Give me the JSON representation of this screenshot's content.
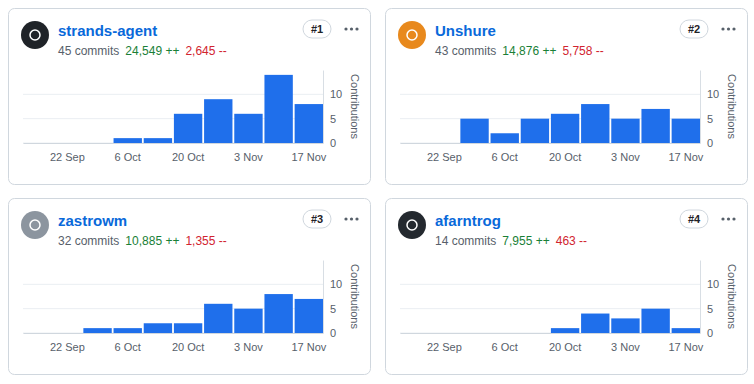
{
  "chart_data": [
    {
      "type": "bar",
      "title": "strands-agent",
      "subtitle": "45 commits",
      "annotations": [
        "24,549 ++",
        "2,645 --"
      ],
      "rank": "#1",
      "ylabel": "Contributions",
      "categories": [
        null,
        "22 Sep",
        null,
        "6 Oct",
        null,
        "20 Oct",
        null,
        "3 Nov",
        null,
        "17 Nov"
      ],
      "values": [
        0,
        0,
        0,
        1,
        1,
        6,
        9,
        6,
        14,
        8
      ],
      "color": "#1f6feb",
      "ylim": [
        0,
        15
      ],
      "yticks": [
        0,
        5,
        10
      ],
      "grid": true
    },
    {
      "type": "bar",
      "title": "Unshure",
      "subtitle": "43 commits",
      "annotations": [
        "14,876 ++",
        "5,758 --"
      ],
      "rank": "#2",
      "ylabel": "Contributions",
      "categories": [
        null,
        "22 Sep",
        null,
        "6 Oct",
        null,
        "20 Oct",
        null,
        "3 Nov",
        null,
        "17 Nov"
      ],
      "values": [
        0,
        0,
        5,
        2,
        5,
        6,
        8,
        5,
        7,
        5
      ],
      "color": "#1f6feb",
      "ylim": [
        0,
        15
      ],
      "yticks": [
        0,
        5,
        10
      ],
      "grid": true
    },
    {
      "type": "bar",
      "title": "zastrowm",
      "subtitle": "32 commits",
      "annotations": [
        "10,885 ++",
        "1,355 --"
      ],
      "rank": "#3",
      "ylabel": "Contributions",
      "categories": [
        null,
        "22 Sep",
        null,
        "6 Oct",
        null,
        "20 Oct",
        null,
        "3 Nov",
        null,
        "17 Nov"
      ],
      "values": [
        0,
        0,
        1,
        1,
        2,
        2,
        6,
        5,
        8,
        7
      ],
      "color": "#1f6feb",
      "ylim": [
        0,
        15
      ],
      "yticks": [
        0,
        5,
        10
      ],
      "grid": true
    },
    {
      "type": "bar",
      "title": "afarntrog",
      "subtitle": "14 commits",
      "annotations": [
        "7,955 ++",
        "463 --"
      ],
      "rank": "#4",
      "ylabel": "Contributions",
      "categories": [
        null,
        "22 Sep",
        null,
        "6 Oct",
        null,
        "20 Oct",
        null,
        "3 Nov",
        null,
        "17 Nov"
      ],
      "values": [
        0,
        0,
        0,
        0,
        0,
        1,
        4,
        3,
        5,
        1
      ],
      "color": "#1f6feb",
      "ylim": [
        0,
        15
      ],
      "yticks": [
        0,
        5,
        10
      ],
      "grid": true
    }
  ]
}
